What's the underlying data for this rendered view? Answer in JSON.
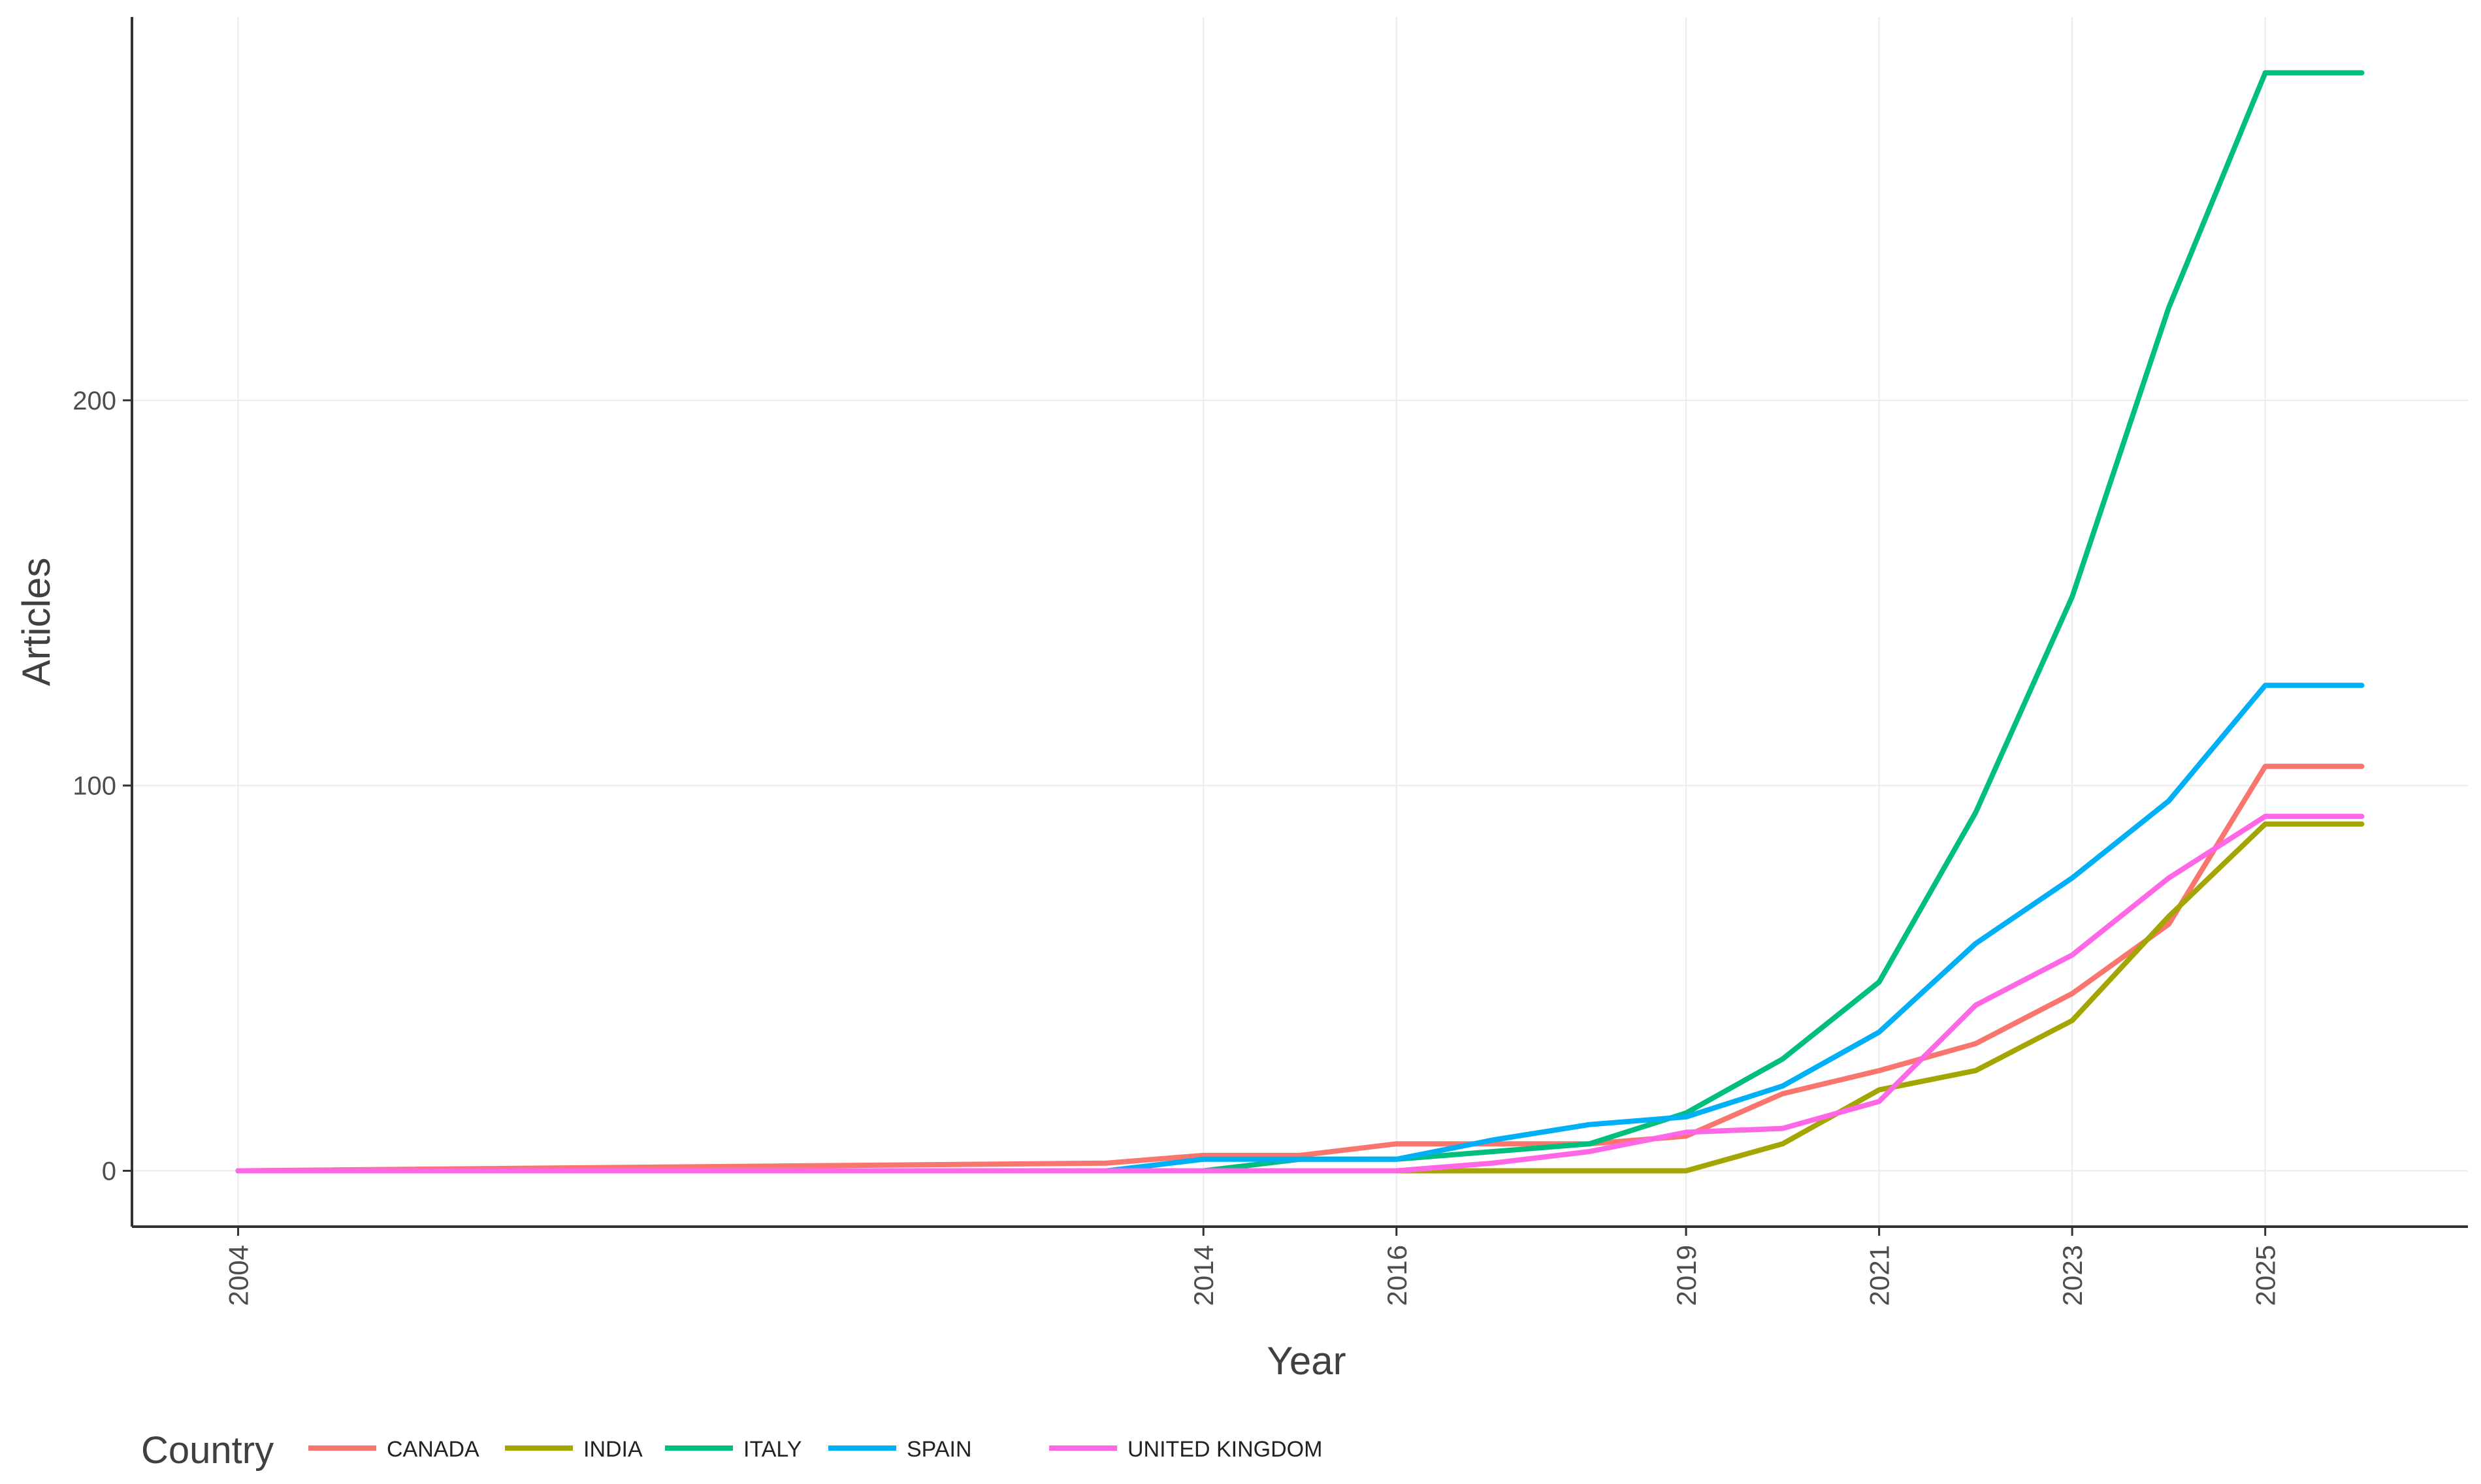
{
  "chart_data": {
    "type": "line",
    "xlabel": "Year",
    "ylabel": "Articles",
    "x_ticks": [
      2004,
      2014,
      2016,
      2019,
      2021,
      2023,
      2025
    ],
    "y_ticks": [
      0,
      100,
      200
    ],
    "xlim": [
      2002.9,
      2027.1
    ],
    "ylim": [
      -14.5,
      299.5
    ],
    "grid": true,
    "legend": {
      "title": "Country",
      "position": "bottom-left"
    },
    "x": [
      2004,
      2013,
      2014,
      2015,
      2016,
      2017,
      2018,
      2019,
      2020,
      2021,
      2022,
      2023,
      2024,
      2025,
      2026
    ],
    "series": [
      {
        "name": "CANADA",
        "color": "#F8766D",
        "values": [
          0,
          2,
          4,
          4,
          7,
          7,
          7,
          9,
          20,
          26,
          33,
          46,
          64,
          105,
          105
        ]
      },
      {
        "name": "INDIA",
        "color": "#A3A500",
        "values": [
          0,
          0,
          0,
          0,
          0,
          0,
          0,
          0,
          7,
          21,
          26,
          39,
          66,
          90,
          90
        ]
      },
      {
        "name": "ITALY",
        "color": "#00BF7D",
        "values": [
          0,
          0,
          0,
          3,
          3,
          5,
          7,
          15,
          29,
          49,
          93,
          149,
          224,
          285,
          285
        ]
      },
      {
        "name": "SPAIN",
        "color": "#00B0F6",
        "values": [
          0,
          0,
          3,
          3,
          3,
          8,
          12,
          14,
          22,
          36,
          59,
          76,
          96,
          126,
          126
        ]
      },
      {
        "name": "UNITED KINGDOM",
        "color": "#FF67E6",
        "values": [
          0,
          0,
          0,
          0,
          0,
          2,
          5,
          10,
          11,
          18,
          43,
          56,
          76,
          92,
          92
        ]
      }
    ]
  }
}
